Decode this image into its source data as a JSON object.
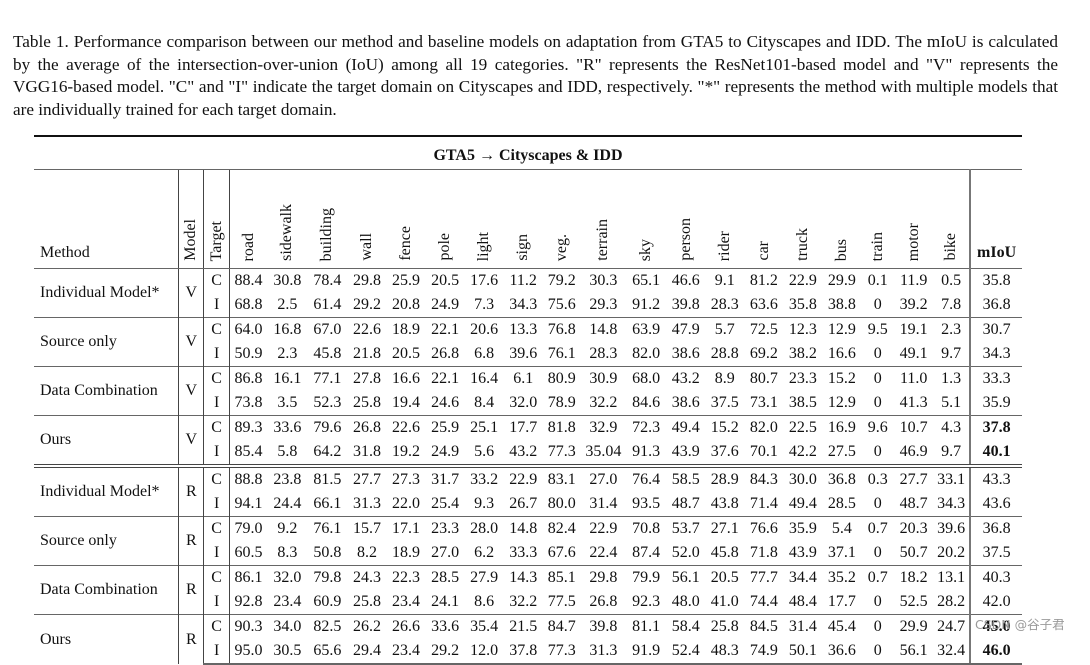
{
  "caption": "Table 1. Performance comparison between our method and baseline models on adaptation from GTA5 to Cityscapes and IDD. The mIoU is calculated by the average of the intersection-over-union (IoU) among all 19 categories. \"R\" represents the ResNet101-based model and \"V\" represents the VGG16-based model. \"C\" and \"I\" indicate the target domain on Cityscapes and IDD, respectively. \"*\" represents the method with multiple models that are individually trained for each target domain.",
  "table": {
    "title": "GTA5 → Cityscapes & IDD",
    "headers": {
      "method": "Method",
      "model": "Model",
      "target": "Target",
      "classes": [
        "road",
        "sidewalk",
        "building",
        "wall",
        "fence",
        "pole",
        "light",
        "sign",
        "veg.",
        "terrain",
        "sky",
        "person",
        "rider",
        "car",
        "truck",
        "bus",
        "train",
        "motor",
        "bike"
      ],
      "miou": "mIoU"
    },
    "groups": [
      {
        "method": "Individual Model*",
        "model": "V",
        "rows": [
          {
            "target": "C",
            "values": [
              "88.4",
              "30.8",
              "78.4",
              "29.8",
              "25.9",
              "20.5",
              "17.6",
              "11.2",
              "79.2",
              "30.3",
              "65.1",
              "46.6",
              "9.1",
              "81.2",
              "22.9",
              "29.9",
              "0.1",
              "11.9",
              "0.5"
            ],
            "miou": "35.8"
          },
          {
            "target": "I",
            "values": [
              "68.8",
              "2.5",
              "61.4",
              "29.2",
              "20.8",
              "24.9",
              "7.3",
              "34.3",
              "75.6",
              "29.3",
              "91.2",
              "39.8",
              "28.3",
              "63.6",
              "35.8",
              "38.8",
              "0",
              "39.2",
              "7.8"
            ],
            "miou": "36.8"
          }
        ]
      },
      {
        "method": "Source only",
        "model": "V",
        "rows": [
          {
            "target": "C",
            "values": [
              "64.0",
              "16.8",
              "67.0",
              "22.6",
              "18.9",
              "22.1",
              "20.6",
              "13.3",
              "76.8",
              "14.8",
              "63.9",
              "47.9",
              "5.7",
              "72.5",
              "12.3",
              "12.9",
              "9.5",
              "19.1",
              "2.3"
            ],
            "miou": "30.7"
          },
          {
            "target": "I",
            "values": [
              "50.9",
              "2.3",
              "45.8",
              "21.8",
              "20.5",
              "26.8",
              "6.8",
              "39.6",
              "76.1",
              "28.3",
              "82.0",
              "38.6",
              "28.8",
              "69.2",
              "38.2",
              "16.6",
              "0",
              "49.1",
              "9.7"
            ],
            "miou": "34.3"
          }
        ]
      },
      {
        "method": "Data Combination",
        "model": "V",
        "rows": [
          {
            "target": "C",
            "values": [
              "86.8",
              "16.1",
              "77.1",
              "27.8",
              "16.6",
              "22.1",
              "16.4",
              "6.1",
              "80.9",
              "30.9",
              "68.0",
              "43.2",
              "8.9",
              "80.7",
              "23.3",
              "15.2",
              "0",
              "11.0",
              "1.3"
            ],
            "miou": "33.3"
          },
          {
            "target": "I",
            "values": [
              "73.8",
              "3.5",
              "52.3",
              "25.8",
              "19.4",
              "24.6",
              "8.4",
              "32.0",
              "78.9",
              "32.2",
              "84.6",
              "38.6",
              "37.5",
              "73.1",
              "38.5",
              "12.9",
              "0",
              "41.3",
              "5.1"
            ],
            "miou": "35.9"
          }
        ]
      },
      {
        "method": "Ours",
        "model": "V",
        "rows": [
          {
            "target": "C",
            "values": [
              "89.3",
              "33.6",
              "79.6",
              "26.8",
              "22.6",
              "25.9",
              "25.1",
              "17.7",
              "81.8",
              "32.9",
              "72.3",
              "49.4",
              "15.2",
              "82.0",
              "22.5",
              "16.9",
              "9.6",
              "10.7",
              "4.3"
            ],
            "miou": "37.8",
            "miou_bold": true
          },
          {
            "target": "I",
            "values": [
              "85.4",
              "5.8",
              "64.2",
              "31.8",
              "19.2",
              "24.9",
              "5.6",
              "43.2",
              "77.3",
              "35.04",
              "91.3",
              "43.9",
              "37.6",
              "70.1",
              "42.2",
              "27.5",
              "0",
              "46.9",
              "9.7"
            ],
            "miou": "40.1",
            "miou_bold": true
          }
        ]
      },
      {
        "method": "Individual Model*",
        "model": "R",
        "rows": [
          {
            "target": "C",
            "values": [
              "88.8",
              "23.8",
              "81.5",
              "27.7",
              "27.3",
              "31.7",
              "33.2",
              "22.9",
              "83.1",
              "27.0",
              "76.4",
              "58.5",
              "28.9",
              "84.3",
              "30.0",
              "36.8",
              "0.3",
              "27.7",
              "33.1"
            ],
            "miou": "43.3"
          },
          {
            "target": "I",
            "values": [
              "94.1",
              "24.4",
              "66.1",
              "31.3",
              "22.0",
              "25.4",
              "9.3",
              "26.7",
              "80.0",
              "31.4",
              "93.5",
              "48.7",
              "43.8",
              "71.4",
              "49.4",
              "28.5",
              "0",
              "48.7",
              "34.3"
            ],
            "miou": "43.6"
          }
        ]
      },
      {
        "method": "Source only",
        "model": "R",
        "rows": [
          {
            "target": "C",
            "values": [
              "79.0",
              "9.2",
              "76.1",
              "15.7",
              "17.1",
              "23.3",
              "28.0",
              "14.8",
              "82.4",
              "22.9",
              "70.8",
              "53.7",
              "27.1",
              "76.6",
              "35.9",
              "5.4",
              "0.7",
              "20.3",
              "39.6"
            ],
            "miou": "36.8"
          },
          {
            "target": "I",
            "values": [
              "60.5",
              "8.3",
              "50.8",
              "8.2",
              "18.9",
              "27.0",
              "6.2",
              "33.3",
              "67.6",
              "22.4",
              "87.4",
              "52.0",
              "45.8",
              "71.8",
              "43.9",
              "37.1",
              "0",
              "50.7",
              "20.2"
            ],
            "miou": "37.5"
          }
        ]
      },
      {
        "method": "Data Combination",
        "model": "R",
        "rows": [
          {
            "target": "C",
            "values": [
              "86.1",
              "32.0",
              "79.8",
              "24.3",
              "22.3",
              "28.5",
              "27.9",
              "14.3",
              "85.1",
              "29.8",
              "79.9",
              "56.1",
              "20.5",
              "77.7",
              "34.4",
              "35.2",
              "0.7",
              "18.2",
              "13.1"
            ],
            "miou": "40.3"
          },
          {
            "target": "I",
            "values": [
              "92.8",
              "23.4",
              "60.9",
              "25.8",
              "23.4",
              "24.1",
              "8.6",
              "32.2",
              "77.5",
              "26.8",
              "92.3",
              "48.0",
              "41.0",
              "74.4",
              "48.4",
              "17.7",
              "0",
              "52.5",
              "28.2"
            ],
            "miou": "42.0"
          }
        ]
      },
      {
        "method": "Ours",
        "model": "R",
        "rows": [
          {
            "target": "C",
            "values": [
              "90.3",
              "34.0",
              "82.5",
              "26.2",
              "26.6",
              "33.6",
              "35.4",
              "21.5",
              "84.7",
              "39.8",
              "81.1",
              "58.4",
              "25.8",
              "84.5",
              "31.4",
              "45.4",
              "0",
              "29.9",
              "24.7"
            ],
            "miou": "45.0",
            "miou_bold": true
          },
          {
            "target": "I",
            "values": [
              "95.0",
              "30.5",
              "65.6",
              "29.4",
              "23.4",
              "29.2",
              "12.0",
              "37.8",
              "77.3",
              "31.3",
              "91.9",
              "52.4",
              "48.3",
              "74.9",
              "50.1",
              "36.6",
              "0",
              "56.1",
              "32.4"
            ],
            "miou": "46.0",
            "miou_bold": true
          }
        ]
      }
    ]
  },
  "watermark": "CSDN @谷子君"
}
